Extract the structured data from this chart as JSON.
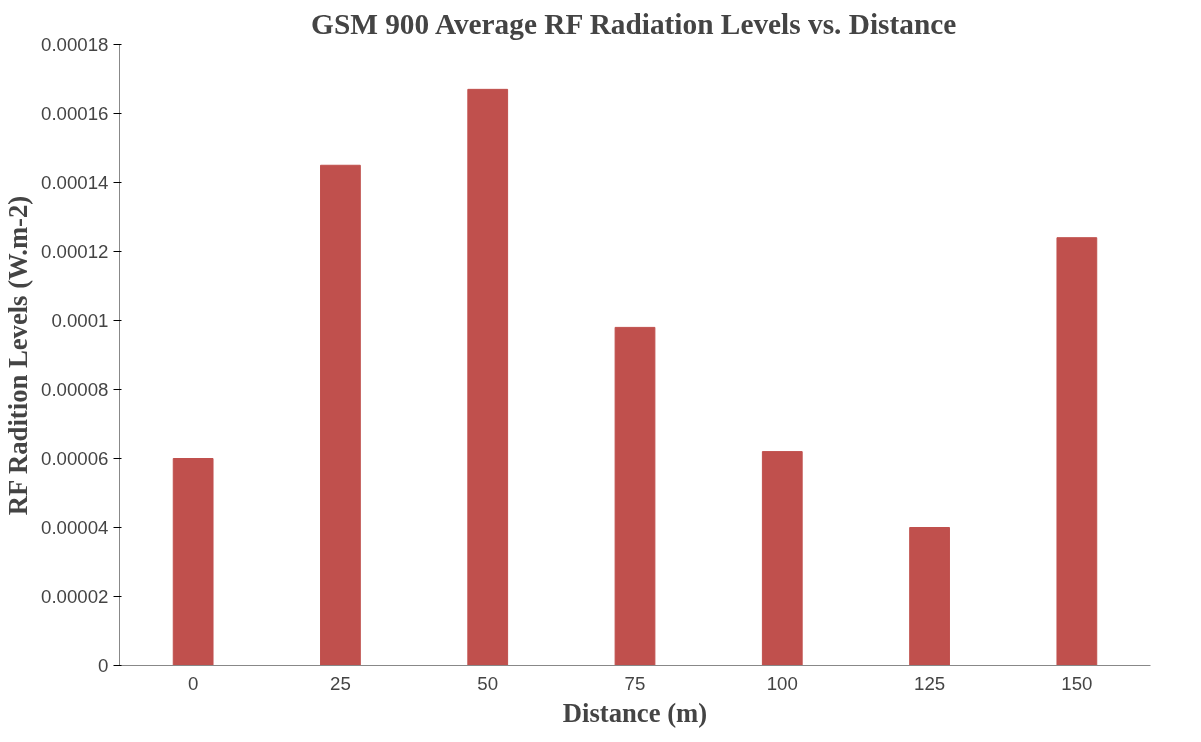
{
  "chart_data": {
    "type": "bar",
    "title": "GSM 900 Average RF Radiation Levels vs. Distance",
    "xlabel": "Distance (m)",
    "ylabel": "RF Radition Levels (W.m-2)",
    "categories": [
      "0",
      "25",
      "50",
      "75",
      "100",
      "125",
      "150"
    ],
    "values": [
      6e-05,
      0.000145,
      0.000167,
      9.8e-05,
      6.2e-05,
      4e-05,
      0.000124
    ],
    "color": "#c0504d",
    "ylim": [
      0,
      0.00018
    ],
    "yticks": [
      0,
      {
        "value": 2e-05,
        "label": "0.00002"
      },
      {
        "value": 4e-05,
        "label": "0.00004"
      },
      {
        "value": 6e-05,
        "label": "0.00006"
      },
      {
        "value": 8e-05,
        "label": "0.00008"
      },
      {
        "value": 0.0001,
        "label": "0.0001"
      },
      {
        "value": 0.00012,
        "label": "0.00012"
      },
      {
        "value": 0.00014,
        "label": "0.00014"
      },
      {
        "value": 0.00016,
        "label": "0.00016"
      },
      {
        "value": 0.00018,
        "label": "0.00018"
      }
    ],
    "grid": false
  }
}
